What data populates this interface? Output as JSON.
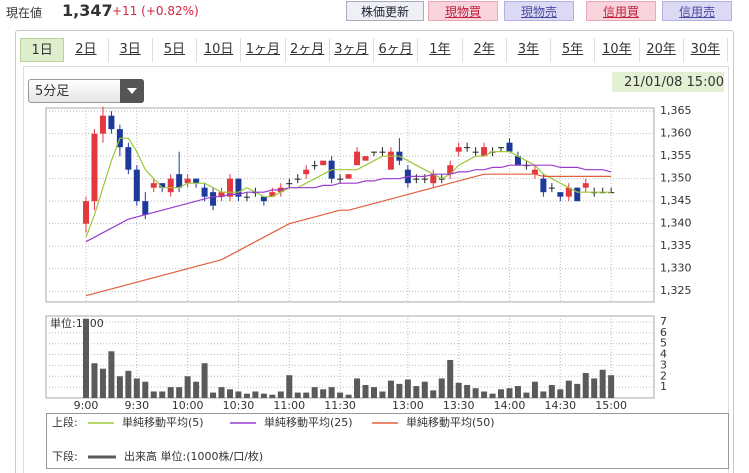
{
  "header": {
    "label": "現在値",
    "price": "1,347",
    "change": "+11 (+0.82%)",
    "buttons": [
      "株価更新",
      "現物買",
      "現物売",
      "信用買",
      "信用売"
    ]
  },
  "tabs": [
    "1日",
    "2日",
    "3日",
    "5日",
    "10日",
    "1ヶ月",
    "2ヶ月",
    "3ヶ月",
    "6ヶ月",
    "1年",
    "2年",
    "3年",
    "5年",
    "10年",
    "20年",
    "30年"
  ],
  "interval": "5分足",
  "timestamp": "21/01/08 15:00",
  "chart": {
    "type": "candlestick",
    "up_color": "#e2383f",
    "down_color": "#1d3a9b",
    "categories": [
      "9:00",
      null,
      null,
      null,
      null,
      null,
      "9:30",
      null,
      null,
      null,
      null,
      null,
      "10:00",
      null,
      null,
      null,
      null,
      null,
      "10:30",
      null,
      null,
      null,
      null,
      null,
      "11:00",
      null,
      null,
      null,
      null,
      null,
      "11:30",
      null,
      null,
      null,
      null,
      null,
      null,
      null,
      "13:00",
      null,
      null,
      null,
      null,
      null,
      "13:30",
      null,
      null,
      null,
      null,
      null,
      "14:00",
      null,
      null,
      null,
      null,
      null,
      "14:30",
      null,
      null,
      null,
      null,
      null,
      "15:00"
    ],
    "candles": [
      [
        1340,
        1346,
        1338,
        1345
      ],
      [
        1345,
        1361,
        1343,
        1360
      ],
      [
        1360,
        1366,
        1358,
        1364
      ],
      [
        1364,
        1365,
        1360,
        1361
      ],
      [
        1361,
        1362,
        1355,
        1357
      ],
      [
        1357,
        1358,
        1351,
        1352
      ],
      [
        1352,
        1353,
        1344,
        1345
      ],
      [
        1345,
        1347,
        1341,
        1342
      ],
      [
        1348,
        1350,
        1347,
        1349
      ],
      [
        1349,
        1349,
        1347,
        1348
      ],
      [
        1347,
        1351,
        1346,
        1350
      ],
      [
        1351,
        1356,
        1347,
        1348
      ],
      [
        1349,
        1351,
        1348,
        1350
      ],
      [
        1350,
        1350,
        1348,
        1349
      ],
      [
        1348,
        1349,
        1345,
        1346
      ],
      [
        1347,
        1348,
        1343,
        1344
      ],
      [
        1346,
        1348,
        1345,
        1347
      ],
      [
        1346,
        1351,
        1345,
        1350
      ],
      [
        1350,
        1350,
        1345,
        1346
      ],
      [
        1346,
        1347,
        1345,
        1346
      ],
      [
        1347,
        1348,
        1346,
        1347
      ],
      [
        1346,
        1346,
        1344,
        1345
      ],
      [
        1346,
        1348,
        1346,
        1347
      ],
      [
        1347,
        1349,
        1346,
        1348
      ],
      [
        1349,
        1350,
        1348,
        1349
      ],
      [
        1350,
        1351,
        1349,
        1350
      ],
      [
        1351,
        1353,
        1350,
        1352
      ],
      [
        1353,
        1354,
        1352,
        1353
      ],
      [
        1353,
        1354,
        1353,
        1354
      ],
      [
        1354,
        1355,
        1349,
        1350
      ],
      [
        1350,
        1351,
        1349,
        1350
      ],
      [
        1350,
        1351,
        1350,
        1351
      ],
      [
        1353,
        1357,
        1353,
        1356
      ],
      [
        1354,
        1355,
        1354,
        1355
      ],
      [
        1356,
        1356,
        1355,
        1356
      ],
      [
        1356,
        1357,
        1355,
        1356
      ],
      [
        1352,
        1357,
        1352,
        1356
      ],
      [
        1356,
        1359,
        1353,
        1354
      ],
      [
        1352,
        1353,
        1348,
        1349
      ],
      [
        1350,
        1351,
        1349,
        1350
      ],
      [
        1350,
        1351,
        1349,
        1350
      ],
      [
        1349,
        1352,
        1348,
        1351
      ],
      [
        1350,
        1351,
        1349,
        1350
      ],
      [
        1351,
        1354,
        1350,
        1353
      ],
      [
        1356,
        1358,
        1355,
        1357
      ],
      [
        1357,
        1358,
        1356,
        1357
      ],
      [
        1356,
        1357,
        1355,
        1356
      ],
      [
        1355,
        1358,
        1355,
        1357
      ],
      [
        1356,
        1357,
        1355,
        1356
      ],
      [
        1357,
        1357,
        1356,
        1357
      ],
      [
        1358,
        1359,
        1356,
        1356
      ],
      [
        1355,
        1356,
        1353,
        1353
      ],
      [
        1353,
        1354,
        1352,
        1353
      ],
      [
        1351,
        1353,
        1350,
        1352
      ],
      [
        1350,
        1351,
        1346,
        1347
      ],
      [
        1348,
        1349,
        1347,
        1348
      ],
      [
        1347,
        1347,
        1345,
        1346
      ],
      [
        1346,
        1349,
        1345,
        1348
      ],
      [
        1348,
        1348,
        1345,
        1345
      ],
      [
        1348,
        1350,
        1347,
        1349
      ],
      [
        1347,
        1348,
        1346,
        1347
      ],
      [
        1347,
        1348,
        1347,
        1347
      ],
      [
        1347,
        1348,
        1347,
        1347
      ]
    ],
    "ylim": [
      1322.6,
      1365.7
    ],
    "yticks": [
      {
        "value": 1325,
        "label": "1,325"
      },
      {
        "value": 1330,
        "label": "1,330"
      },
      {
        "value": 1335,
        "label": "1,335"
      },
      {
        "value": 1340,
        "label": "1,340"
      },
      {
        "value": 1345,
        "label": "1,345"
      },
      {
        "value": 1350,
        "label": "1,350"
      },
      {
        "value": 1355,
        "label": "1,355"
      },
      {
        "value": 1360,
        "label": "1,360"
      },
      {
        "value": 1365,
        "label": "1,365"
      }
    ],
    "ma": [
      {
        "name": "単純移動平均(5)",
        "color": "#9cc83c",
        "values": [
          1337,
          1342,
          1348,
          1354,
          1359,
          1359,
          1356,
          1352,
          1350,
          1348,
          1348,
          1348,
          1349,
          1349,
          1349,
          1348,
          1347,
          1347,
          1347,
          1348,
          1347,
          1346,
          1346,
          1347,
          1348,
          1348,
          1349,
          1350,
          1351,
          1352,
          1352,
          1352,
          1352,
          1353,
          1354,
          1355,
          1355,
          1355,
          1354,
          1353,
          1352,
          1351,
          1350,
          1351,
          1353,
          1354,
          1355,
          1355,
          1356,
          1356,
          1356,
          1355,
          1354,
          1353,
          1351,
          1350,
          1349,
          1348,
          1347,
          1347,
          1347,
          1347,
          1347
        ]
      },
      {
        "name": "単純移動平均(25)",
        "color": "#9a3dd0",
        "values": [
          1336,
          1337,
          1338,
          1339,
          1340,
          1341,
          1341.5,
          1342,
          1342.5,
          1343,
          1343.5,
          1344,
          1344.5,
          1345,
          1345.5,
          1346,
          1346,
          1346.5,
          1346.5,
          1347,
          1347,
          1347,
          1347.5,
          1347.5,
          1348,
          1348,
          1348,
          1348,
          1348.5,
          1348.5,
          1349,
          1349,
          1349,
          1349.5,
          1349.5,
          1350,
          1350,
          1350,
          1350.5,
          1350.5,
          1350.5,
          1351,
          1351,
          1351,
          1351.5,
          1351.5,
          1352,
          1352,
          1352.5,
          1352.5,
          1353,
          1353,
          1353,
          1353,
          1353,
          1353,
          1352.5,
          1352.5,
          1352.5,
          1352,
          1352,
          1352,
          1351.5
        ]
      },
      {
        "name": "単純移動平均(50)",
        "color": "#e0603c",
        "values": [
          1324,
          1324.5,
          1325,
          1325.5,
          1326,
          1326.5,
          1327,
          1327.5,
          1328,
          1328.5,
          1329,
          1329.5,
          1330,
          1330.5,
          1331,
          1331.5,
          1332,
          1333,
          1334,
          1335,
          1336,
          1337,
          1338,
          1339,
          1340,
          1340.5,
          1341,
          1341.5,
          1342,
          1342.5,
          1343,
          1343,
          1343.5,
          1344,
          1344.5,
          1345,
          1345.5,
          1346,
          1346.5,
          1347,
          1347.5,
          1348,
          1348.5,
          1349,
          1349.5,
          1350,
          1350.5,
          1351,
          1351,
          1351,
          1351,
          1351,
          1351,
          1351,
          1350.5,
          1350.5,
          1350.5,
          1350.5,
          1350.5,
          1350.5,
          1350.5,
          1350.5,
          1350.5
        ]
      }
    ],
    "volume": {
      "unit": "単位:1000",
      "color": "#5a5a5a",
      "ylim": [
        0,
        7.55
      ],
      "yticks": [
        1,
        2,
        3,
        4,
        5,
        6,
        7
      ],
      "values": [
        7.3,
        3.2,
        2.7,
        4.3,
        2.0,
        2.5,
        1.8,
        1.5,
        0.6,
        0.6,
        1.0,
        1.0,
        2.0,
        1.5,
        3.2,
        0.5,
        1.0,
        0.8,
        0.6,
        0.4,
        0.6,
        0.4,
        0.3,
        0.6,
        2.1,
        0.5,
        0.5,
        1.0,
        0.8,
        1.0,
        0.5,
        0.3,
        1.8,
        1.2,
        1.0,
        0.6,
        1.6,
        1.3,
        1.7,
        1.1,
        1.5,
        0.7,
        1.8,
        3.5,
        1.4,
        1.2,
        0.9,
        0.6,
        0.4,
        0.8,
        0.9,
        1.1,
        0.5,
        1.5,
        0.6,
        1.2,
        0.8,
        1.6,
        1.3,
        2.3,
        1.8,
        2.6,
        2.1
      ]
    }
  },
  "legend": {
    "upper": "上段:",
    "lower": "下段:",
    "volume_label": "出来高 単位:(1000株/口/枚)"
  }
}
